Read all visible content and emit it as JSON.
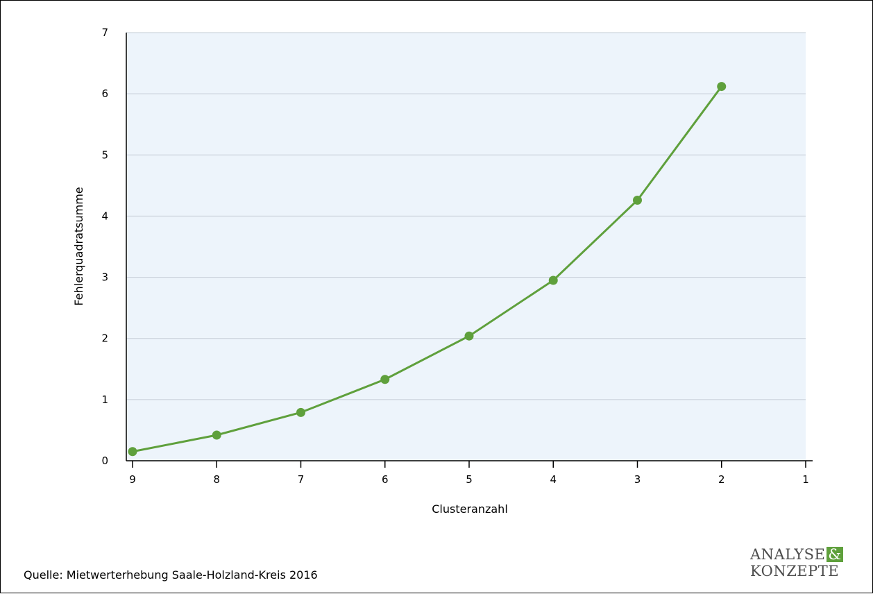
{
  "chart_data": {
    "type": "line",
    "xlabel": "Clusteranzahl",
    "ylabel": "Fehlerquadratsumme",
    "x_ticks": [
      "9",
      "8",
      "7",
      "6",
      "5",
      "4",
      "3",
      "2",
      "1"
    ],
    "y_ticks": [
      "0",
      "1",
      "2",
      "3",
      "4",
      "5",
      "6",
      "7"
    ],
    "ylim": [
      0,
      7
    ],
    "xlim": [
      9,
      1
    ],
    "x_reversed": true,
    "grid": "horizontal",
    "series": [
      {
        "x": [
          9,
          8,
          7,
          6,
          5,
          4,
          3,
          2
        ],
        "values": [
          0.15,
          0.42,
          0.79,
          1.33,
          2.04,
          2.95,
          4.26,
          6.12
        ]
      }
    ],
    "colors": {
      "line": "#5fa03c",
      "plot_bg": "#edf4fb",
      "grid": "#c5ccd6"
    }
  },
  "source": "Quelle: Mietwerterhebung Saale-Holzland-Kreis 2016",
  "logo": {
    "line1": "ANALYSE",
    "amp": "&",
    "line2": "KONZEPTE"
  }
}
